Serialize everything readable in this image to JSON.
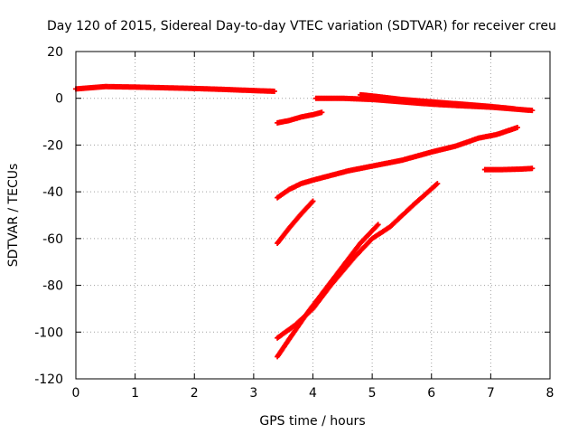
{
  "chart_data": {
    "type": "scatter",
    "title": "Day 120 of 2015, Sidereal Day-to-day VTEC variation (SDTVAR) for receiver creu",
    "xlabel": "GPS time / hours",
    "ylabel": "SDTVAR / TECUs",
    "xlim": [
      0,
      8
    ],
    "ylim": [
      -120,
      20
    ],
    "x_ticks": [
      0,
      1,
      2,
      3,
      4,
      5,
      6,
      7,
      8
    ],
    "y_ticks": [
      20,
      0,
      -20,
      -40,
      -60,
      -80,
      -100,
      -120
    ],
    "grid": true,
    "marker_color": "#ff0000",
    "series": [
      {
        "x": [
          0.0,
          0.5,
          1.0,
          1.5,
          2.0,
          2.5,
          3.0,
          3.35
        ],
        "y": [
          4.0,
          5.0,
          4.8,
          4.5,
          4.2,
          3.8,
          3.3,
          3.0
        ]
      },
      {
        "x": [
          3.4,
          3.6,
          3.8,
          4.0,
          4.15
        ],
        "y": [
          -10.5,
          -9.5,
          -8.0,
          -7.0,
          -6.0
        ]
      },
      {
        "x": [
          4.05,
          4.5,
          5.0,
          5.5,
          6.0,
          6.5,
          7.0,
          7.5,
          7.7
        ],
        "y": [
          0.0,
          0.0,
          -0.5,
          -1.5,
          -2.5,
          -3.2,
          -3.8,
          -4.8,
          -5.2
        ]
      },
      {
        "x": [
          4.8,
          5.0,
          5.5,
          6.0,
          6.5,
          7.0,
          7.4
        ],
        "y": [
          1.5,
          1.0,
          -0.5,
          -1.5,
          -2.5,
          -3.5,
          -4.5
        ]
      },
      {
        "x": [
          3.4,
          3.6,
          3.8,
          4.0,
          4.3,
          4.6,
          5.0,
          5.5,
          6.0,
          6.4,
          6.8,
          7.1,
          7.45
        ],
        "y": [
          -42.5,
          -39.0,
          -36.5,
          -35.0,
          -33.0,
          -31.0,
          -29.0,
          -26.5,
          -23.0,
          -20.5,
          -17.0,
          -15.5,
          -12.5
        ]
      },
      {
        "x": [
          6.9,
          7.2,
          7.5,
          7.7
        ],
        "y": [
          -30.5,
          -30.5,
          -30.3,
          -30.0
        ]
      },
      {
        "x": [
          3.4,
          3.6,
          3.8,
          4.0
        ],
        "y": [
          -62.0,
          -55.5,
          -49.5,
          -44.0
        ]
      },
      {
        "x": [
          3.4,
          3.7,
          4.0,
          4.3,
          4.7,
          5.0,
          5.3,
          5.7,
          6.1
        ],
        "y": [
          -102.5,
          -97.0,
          -90.0,
          -80.0,
          -68.0,
          -60.0,
          -55.0,
          -45.5,
          -36.5
        ]
      },
      {
        "x": [
          3.4,
          3.6,
          3.9,
          4.2,
          4.5,
          4.8,
          5.1
        ],
        "y": [
          -110.5,
          -103.0,
          -92.0,
          -82.0,
          -72.0,
          -62.0,
          -54.0
        ]
      }
    ]
  }
}
